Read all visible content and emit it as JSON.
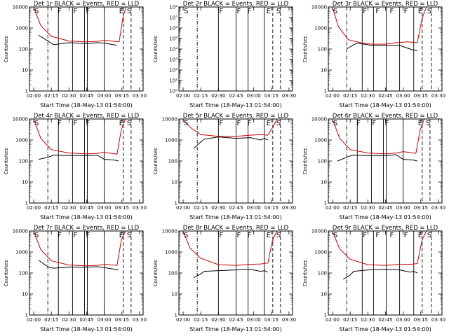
{
  "figure": {
    "xlabel": "Start Time (18-May-13 01:54:00)",
    "ylabel": "Counts/sec",
    "x_tick_labels": [
      "02:00",
      "02:15",
      "02:30",
      "02:45",
      "03:00",
      "03:15",
      "03:30"
    ]
  },
  "chart_data": [
    {
      "type": "line",
      "title": "Det 1r BLACK = Events, RED = LLD",
      "ylim": [
        1,
        10000
      ],
      "yscale": "log",
      "y_tick_labels": [
        "1",
        "10",
        "100",
        "1000",
        "10000"
      ],
      "series": [
        {
          "color": "#000000",
          "x": [
            2.07,
            2.25,
            2.28,
            2.5,
            2.75,
            2.9,
            3.0,
            3.13,
            3.18
          ],
          "y": [
            450,
            190,
            160,
            200,
            180,
            200,
            190,
            160,
            150
          ]
        },
        {
          "color": "#cc0000",
          "x": [
            2.0,
            2.1,
            2.25,
            2.5,
            2.75,
            2.9,
            3.0,
            3.15,
            3.21,
            3.27,
            3.31
          ],
          "y": [
            9500,
            1300,
            400,
            240,
            220,
            230,
            260,
            230,
            220,
            4000,
            10000
          ]
        }
      ],
      "markers": [
        {
          "x": 2.0,
          "label": "S"
        },
        {
          "x": 2.33,
          "label": "F"
        },
        {
          "x": 2.55,
          "label": "F"
        },
        {
          "x": 2.73,
          "label": "F"
        },
        {
          "x": 3.2,
          "label": "E"
        },
        {
          "x": 3.31,
          "label": "S"
        }
      ],
      "solid_lines": [
        2.35,
        2.55,
        2.72,
        2.76,
        3.0
      ],
      "dash_dot_lines": [
        2.2
      ],
      "dashed_lines": [
        3.27,
        3.38
      ]
    },
    {
      "type": "line",
      "title": "Det 2r BLACK = Events, RED = LLD",
      "ylim": [
        1,
        100000000
      ],
      "yscale": "log",
      "y_tick_labels": [
        "10⁰",
        "10¹",
        "10²",
        "10³",
        "10⁴",
        "10⁵",
        "10⁶",
        "10⁷",
        "10⁸"
      ],
      "series": [],
      "markers": [
        {
          "x": 2.0,
          "label": "S"
        },
        {
          "x": 2.5,
          "label": "F"
        },
        {
          "x": 2.75,
          "label": "F"
        },
        {
          "x": 2.9,
          "label": "F"
        },
        {
          "x": 3.17,
          "label": "E"
        },
        {
          "x": 3.31,
          "label": "S"
        }
      ],
      "solid_lines": [
        2.5,
        2.75,
        2.92,
        3.15
      ],
      "dash_dot_lines": [
        2.2
      ],
      "dashed_lines": [
        3.27,
        3.38
      ]
    },
    {
      "type": "line",
      "title": "Det 3r BLACK = Events, RED = LLD",
      "ylim": [
        1,
        10000
      ],
      "yscale": "log",
      "y_tick_labels": [
        "1",
        "10",
        "100",
        "1000",
        "10000"
      ],
      "series": [
        {
          "color": "#000000",
          "x": [
            2.2,
            2.3,
            2.35,
            2.55,
            2.75,
            2.95,
            3.0,
            3.14,
            3.2
          ],
          "y": [
            100,
            160,
            190,
            150,
            145,
            150,
            130,
            90,
            85
          ]
        },
        {
          "color": "#cc0000",
          "x": [
            2.0,
            2.08,
            2.22,
            2.4,
            2.55,
            2.75,
            2.9,
            3.05,
            3.2,
            3.27,
            3.33
          ],
          "y": [
            9500,
            1200,
            280,
            200,
            170,
            170,
            200,
            220,
            200,
            3000,
            10000
          ]
        }
      ],
      "markers": [
        {
          "x": 2.0,
          "label": "S"
        },
        {
          "x": 2.42,
          "label": "F"
        },
        {
          "x": 2.6,
          "label": "F"
        },
        {
          "x": 2.8,
          "label": "F"
        },
        {
          "x": 3.0,
          "label": "F"
        },
        {
          "x": 3.2,
          "label": "E"
        },
        {
          "x": 3.33,
          "label": "S"
        }
      ],
      "solid_lines": [
        2.42,
        2.58,
        2.76,
        2.95,
        3.15
      ],
      "dash_dot_lines": [
        2.2
      ],
      "dashed_lines": [
        3.27,
        3.4
      ]
    },
    {
      "type": "line",
      "title": "Det 4r BLACK = Events, RED = LLD",
      "ylim": [
        1,
        10000
      ],
      "yscale": "log",
      "y_tick_labels": [
        "1",
        "10",
        "100",
        "1000",
        "10000"
      ],
      "series": [
        {
          "color": "#000000",
          "x": [
            2.07,
            2.2,
            2.28,
            2.5,
            2.75,
            2.9,
            3.0,
            3.15,
            3.2
          ],
          "y": [
            120,
            150,
            190,
            180,
            180,
            190,
            120,
            110,
            100
          ]
        },
        {
          "color": "#cc0000",
          "x": [
            2.0,
            2.1,
            2.25,
            2.5,
            2.75,
            2.9,
            3.0,
            3.18,
            3.24,
            3.3
          ],
          "y": [
            9500,
            1200,
            350,
            240,
            220,
            230,
            260,
            210,
            3000,
            10000
          ]
        }
      ],
      "markers": [
        {
          "x": 2.0,
          "label": "S"
        },
        {
          "x": 2.33,
          "label": "F"
        },
        {
          "x": 2.55,
          "label": "F"
        },
        {
          "x": 2.73,
          "label": "F"
        },
        {
          "x": 3.2,
          "label": "E"
        },
        {
          "x": 3.31,
          "label": "S"
        }
      ],
      "solid_lines": [
        2.35,
        2.55,
        2.72,
        2.76,
        3.0
      ],
      "dash_dot_lines": [
        2.2
      ],
      "dashed_lines": [
        3.27,
        3.38
      ]
    },
    {
      "type": "line",
      "title": "Det 5r BLACK = Events, RED = LLD",
      "ylim": [
        1,
        10000
      ],
      "yscale": "log",
      "y_tick_labels": [
        "1",
        "10",
        "100",
        "1000",
        "10000"
      ],
      "series": [
        {
          "color": "#000000",
          "x": [
            2.15,
            2.25,
            2.3,
            2.5,
            2.75,
            2.95,
            3.1,
            3.15,
            3.2
          ],
          "y": [
            400,
            800,
            1100,
            1400,
            1200,
            1300,
            1000,
            1200,
            1000
          ]
        },
        {
          "color": "#cc0000",
          "x": [
            2.0,
            2.1,
            2.25,
            2.5,
            2.75,
            2.95,
            3.1,
            3.2,
            3.27,
            3.33
          ],
          "y": [
            9500,
            4000,
            1800,
            1500,
            1500,
            1700,
            1800,
            1700,
            4000,
            10000
          ]
        }
      ],
      "markers": [
        {
          "x": 2.0,
          "label": "S"
        },
        {
          "x": 2.5,
          "label": "F"
        },
        {
          "x": 2.75,
          "label": "F"
        },
        {
          "x": 2.9,
          "label": "F"
        },
        {
          "x": 3.17,
          "label": "E"
        },
        {
          "x": 3.31,
          "label": "S"
        }
      ],
      "solid_lines": [
        2.5,
        2.75,
        2.92,
        3.15
      ],
      "dash_dot_lines": [
        2.2
      ],
      "dashed_lines": [
        3.27,
        3.38
      ]
    },
    {
      "type": "line",
      "title": "Det 6r BLACK = Events, RED = LLD",
      "ylim": [
        1,
        10000
      ],
      "yscale": "log",
      "y_tick_labels": [
        "1",
        "10",
        "100",
        "1000",
        "10000"
      ],
      "series": [
        {
          "color": "#000000",
          "x": [
            2.07,
            2.2,
            2.28,
            2.5,
            2.75,
            2.9,
            3.0,
            3.15,
            3.2
          ],
          "y": [
            100,
            150,
            190,
            180,
            180,
            200,
            120,
            110,
            100
          ]
        },
        {
          "color": "#cc0000",
          "x": [
            2.0,
            2.1,
            2.25,
            2.5,
            2.75,
            2.9,
            3.0,
            3.18,
            3.24,
            3.3
          ],
          "y": [
            9500,
            1200,
            350,
            240,
            220,
            240,
            280,
            230,
            3000,
            10000
          ]
        }
      ],
      "markers": [
        {
          "x": 2.0,
          "label": "S"
        },
        {
          "x": 2.33,
          "label": "F"
        },
        {
          "x": 2.55,
          "label": "F"
        },
        {
          "x": 2.73,
          "label": "F"
        },
        {
          "x": 3.2,
          "label": "E"
        },
        {
          "x": 3.31,
          "label": "S"
        }
      ],
      "solid_lines": [
        2.35,
        2.55,
        2.72,
        2.76,
        3.0
      ],
      "dash_dot_lines": [
        2.2
      ],
      "dashed_lines": [
        3.27,
        3.38
      ]
    },
    {
      "type": "line",
      "title": "Det 7r BLACK = Events, RED = LLD",
      "ylim": [
        1,
        10000
      ],
      "yscale": "log",
      "y_tick_labels": [
        "1",
        "10",
        "100",
        "1000",
        "10000"
      ],
      "series": [
        {
          "color": "#000000",
          "x": [
            2.07,
            2.2,
            2.28,
            2.5,
            2.75,
            2.9,
            3.0,
            3.15,
            3.2
          ],
          "y": [
            400,
            200,
            170,
            190,
            190,
            200,
            180,
            150,
            140
          ]
        },
        {
          "color": "#cc0000",
          "x": [
            2.0,
            2.1,
            2.25,
            2.5,
            2.75,
            2.9,
            3.0,
            3.18,
            3.24,
            3.3
          ],
          "y": [
            9500,
            1300,
            380,
            240,
            220,
            230,
            260,
            230,
            3500,
            10000
          ]
        }
      ],
      "markers": [
        {
          "x": 2.0,
          "label": "S"
        },
        {
          "x": 2.33,
          "label": "F"
        },
        {
          "x": 2.55,
          "label": "F"
        },
        {
          "x": 2.73,
          "label": "F"
        },
        {
          "x": 3.2,
          "label": "E"
        },
        {
          "x": 3.31,
          "label": "S"
        }
      ],
      "solid_lines": [
        2.35,
        2.55,
        2.72,
        2.76,
        3.0
      ],
      "dash_dot_lines": [
        2.2
      ],
      "dashed_lines": [
        3.27,
        3.38
      ]
    },
    {
      "type": "line",
      "title": "Det 8r BLACK = Events, RED = LLD",
      "ylim": [
        1,
        10000
      ],
      "yscale": "log",
      "y_tick_labels": [
        "1",
        "10",
        "100",
        "1000",
        "10000"
      ],
      "series": [
        {
          "color": "#000000",
          "x": [
            2.15,
            2.25,
            2.3,
            2.5,
            2.75,
            2.95,
            3.1,
            3.15,
            3.2
          ],
          "y": [
            60,
            90,
            120,
            130,
            140,
            150,
            120,
            130,
            110
          ]
        },
        {
          "color": "#cc0000",
          "x": [
            2.0,
            2.1,
            2.25,
            2.5,
            2.75,
            2.95,
            3.1,
            3.2,
            3.27,
            3.33
          ],
          "y": [
            9500,
            1500,
            500,
            250,
            230,
            260,
            270,
            300,
            4000,
            10000
          ]
        }
      ],
      "markers": [
        {
          "x": 2.0,
          "label": "S"
        },
        {
          "x": 2.5,
          "label": "F"
        },
        {
          "x": 2.75,
          "label": "F"
        },
        {
          "x": 2.9,
          "label": "F"
        },
        {
          "x": 3.17,
          "label": "E"
        },
        {
          "x": 3.31,
          "label": "S"
        }
      ],
      "solid_lines": [
        2.5,
        2.75,
        2.92,
        3.15
      ],
      "dash_dot_lines": [
        2.2
      ],
      "dashed_lines": [
        3.27,
        3.38
      ]
    },
    {
      "type": "line",
      "title": "Det 9r BLACK = Events, RED = LLD",
      "ylim": [
        1,
        10000
      ],
      "yscale": "log",
      "y_tick_labels": [
        "1",
        "10",
        "100",
        "1000",
        "10000"
      ],
      "series": [
        {
          "color": "#000000",
          "x": [
            2.15,
            2.25,
            2.3,
            2.5,
            2.75,
            2.95,
            3.1,
            3.15,
            3.2
          ],
          "y": [
            50,
            80,
            120,
            140,
            150,
            140,
            110,
            120,
            100
          ]
        },
        {
          "color": "#cc0000",
          "x": [
            2.0,
            2.1,
            2.25,
            2.5,
            2.75,
            2.95,
            3.1,
            3.2,
            3.27,
            3.33
          ],
          "y": [
            9500,
            1400,
            450,
            250,
            230,
            260,
            260,
            280,
            4000,
            10000
          ]
        }
      ],
      "markers": [
        {
          "x": 2.0,
          "label": "S"
        },
        {
          "x": 2.42,
          "label": "F"
        },
        {
          "x": 2.6,
          "label": "F"
        },
        {
          "x": 2.8,
          "label": "F"
        },
        {
          "x": 3.0,
          "label": "F"
        },
        {
          "x": 3.2,
          "label": "E"
        },
        {
          "x": 3.33,
          "label": "S"
        }
      ],
      "solid_lines": [
        2.42,
        2.58,
        2.76,
        2.95,
        3.15
      ],
      "dash_dot_lines": [
        2.2
      ],
      "dashed_lines": [
        3.27,
        3.4
      ]
    }
  ]
}
